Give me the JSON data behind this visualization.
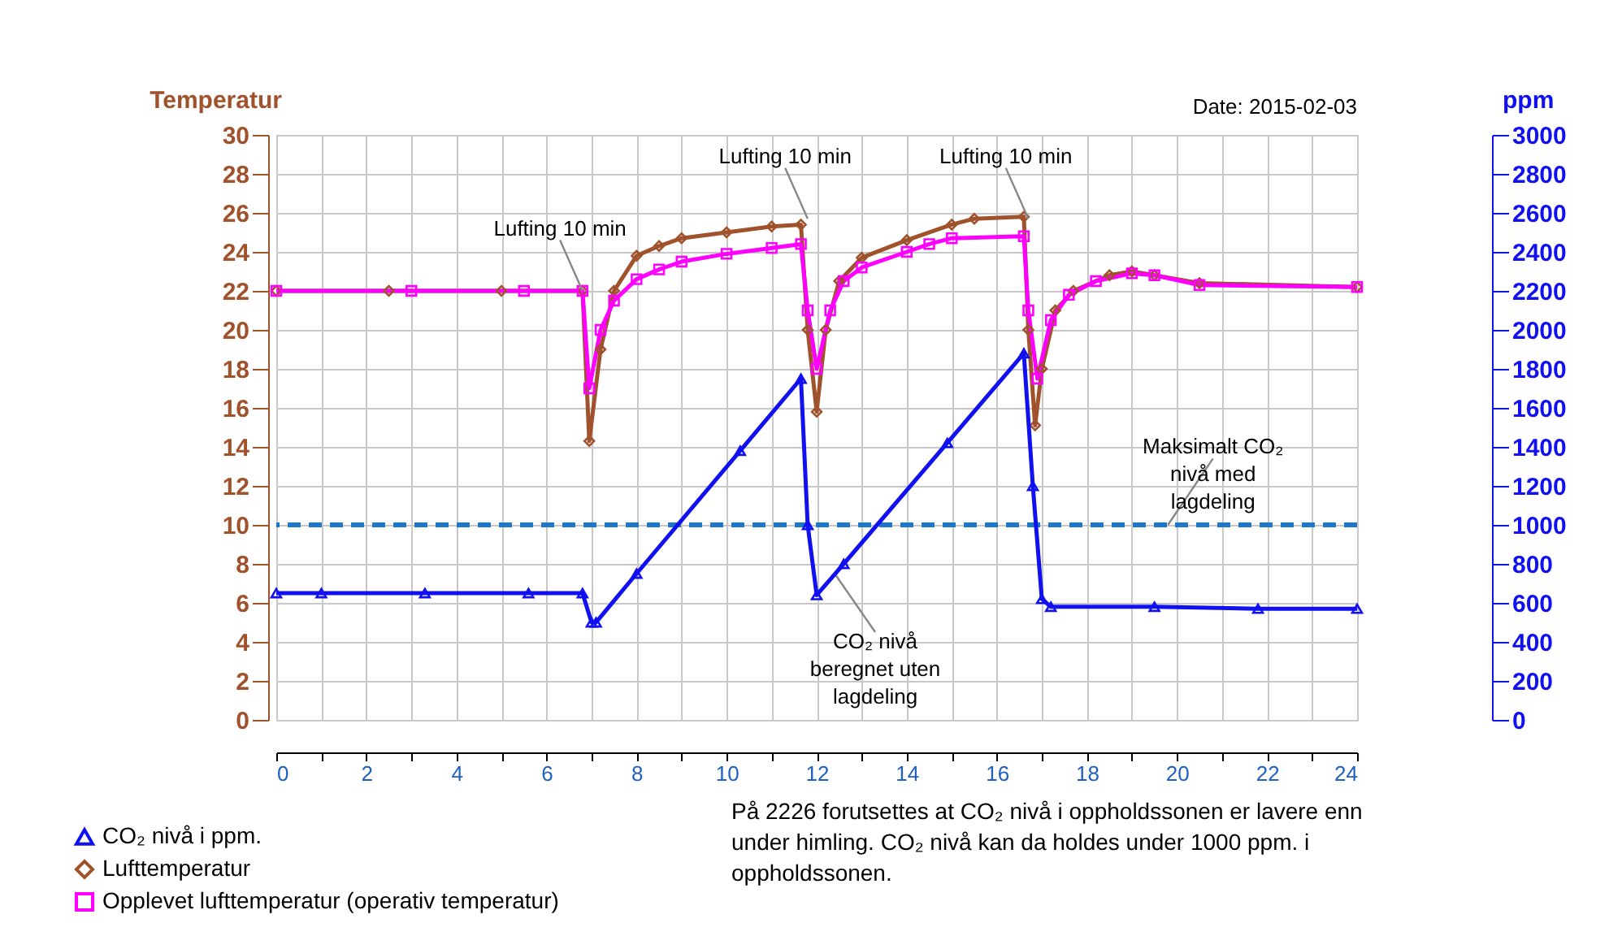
{
  "chart_data": {
    "type": "line",
    "ylabel": "Temperatur",
    "y2label": "ppm",
    "xlim": [
      0,
      24
    ],
    "xticks": [
      0,
      {
        "value": 1,
        "label": null
      },
      2,
      {
        "value": 3,
        "label": null
      },
      4,
      {
        "value": 5,
        "label": null
      },
      6,
      {
        "value": 7,
        "label": null
      },
      8,
      {
        "value": 9,
        "label": null
      },
      10,
      {
        "value": 11,
        "label": null
      },
      12,
      {
        "value": 13,
        "label": null
      },
      14,
      {
        "value": 15,
        "label": null
      },
      16,
      {
        "value": 17,
        "label": null
      },
      18,
      {
        "value": 19,
        "label": null
      },
      20,
      {
        "value": 21,
        "label": null
      },
      22,
      {
        "value": 23,
        "label": null
      },
      24
    ],
    "ylim": [
      0,
      30
    ],
    "yticks": [
      0,
      2,
      4,
      6,
      8,
      10,
      12,
      14,
      16,
      18,
      20,
      22,
      24,
      26,
      28,
      30
    ],
    "y2lim": [
      0,
      3000
    ],
    "y2ticks": [
      0,
      200,
      400,
      600,
      800,
      1000,
      1200,
      1400,
      1600,
      1800,
      2000,
      2200,
      2400,
      2600,
      2800,
      3000
    ],
    "grid": true,
    "legend": "bottom left",
    "series": [
      {
        "name": "CO₂ nivå i ppm.",
        "color": "#1010f0",
        "axis": "y2",
        "marker": "triangle",
        "x": [
          0,
          1,
          3.3,
          5.6,
          6.8,
          7.0,
          7.1,
          8,
          10.3,
          11.65,
          11.8,
          12.0,
          12.6,
          14.9,
          16.6,
          16.8,
          17.0,
          17.2,
          19.5,
          21.8,
          24
        ],
        "values": [
          650,
          650,
          650,
          650,
          650,
          500,
          500,
          750,
          1380,
          1750,
          1000,
          640,
          800,
          1420,
          1880,
          1200,
          620,
          580,
          580,
          570,
          570
        ]
      },
      {
        "name": "Lufttemperatur",
        "color": "#a0522d",
        "marker": "diamond",
        "x": [
          0,
          2.5,
          5,
          6.8,
          6.95,
          7.2,
          7.5,
          8,
          8.5,
          9,
          10,
          11,
          11.65,
          11.8,
          12.0,
          12.2,
          12.5,
          13,
          14,
          15,
          15.5,
          16.6,
          16.7,
          16.85,
          17.0,
          17.3,
          17.7,
          18.5,
          19,
          19.5,
          20.5,
          24
        ],
        "values": [
          22,
          22,
          22,
          22,
          14.3,
          19,
          22,
          23.8,
          24.3,
          24.7,
          25,
          25.3,
          25.4,
          20,
          15.8,
          20,
          22.5,
          23.7,
          24.6,
          25.4,
          25.7,
          25.8,
          20,
          15.1,
          18,
          21,
          22,
          22.8,
          23,
          22.8,
          22.4,
          22.2
        ]
      },
      {
        "name": "Opplevet lufttemperatur (operativ temperatur)",
        "color": "#ff00ff",
        "marker": "square",
        "x": [
          0,
          3,
          5.5,
          6.8,
          6.95,
          7.2,
          7.5,
          8,
          8.5,
          9,
          10,
          11,
          11.65,
          11.8,
          12.0,
          12.3,
          12.6,
          13,
          14,
          14.5,
          15,
          16.6,
          16.7,
          16.9,
          17.2,
          17.6,
          18.2,
          19,
          19.5,
          20.5,
          24
        ],
        "values": [
          22,
          22,
          22,
          22,
          17,
          20,
          21.5,
          22.6,
          23.1,
          23.5,
          23.9,
          24.2,
          24.4,
          21,
          18,
          21,
          22.5,
          23.2,
          24,
          24.4,
          24.7,
          24.8,
          21,
          17.5,
          20.5,
          21.8,
          22.5,
          22.9,
          22.8,
          22.3,
          22.2
        ]
      }
    ],
    "ref_lines": [
      {
        "axis": "y2",
        "value": 1000,
        "color": "#1e78c8",
        "line_style": "dashed"
      }
    ],
    "annotations": [
      {
        "text": "Lufting 10 min",
        "x": 6.8,
        "y": 22
      },
      {
        "text": "Lufting 10 min",
        "x": 11.8,
        "y": 25.7
      },
      {
        "text": "Lufting 10 min",
        "x": 16.7,
        "y": 25.7
      },
      {
        "text": "Maksimalt CO₂ nivå med lagdeling",
        "x": 19.8,
        "y": 10
      },
      {
        "text": "CO₂ nivå beregnet uten lagdeling",
        "x": 12.4,
        "y": 7.5
      },
      "Date: 2015-02-03",
      "På 2226 forutsettes at  CO₂ nivå i oppholdssonen er lavere enn under himling. CO₂ nivå kan da holdes under 1000 ppm. i oppholdssonen."
    ]
  }
}
